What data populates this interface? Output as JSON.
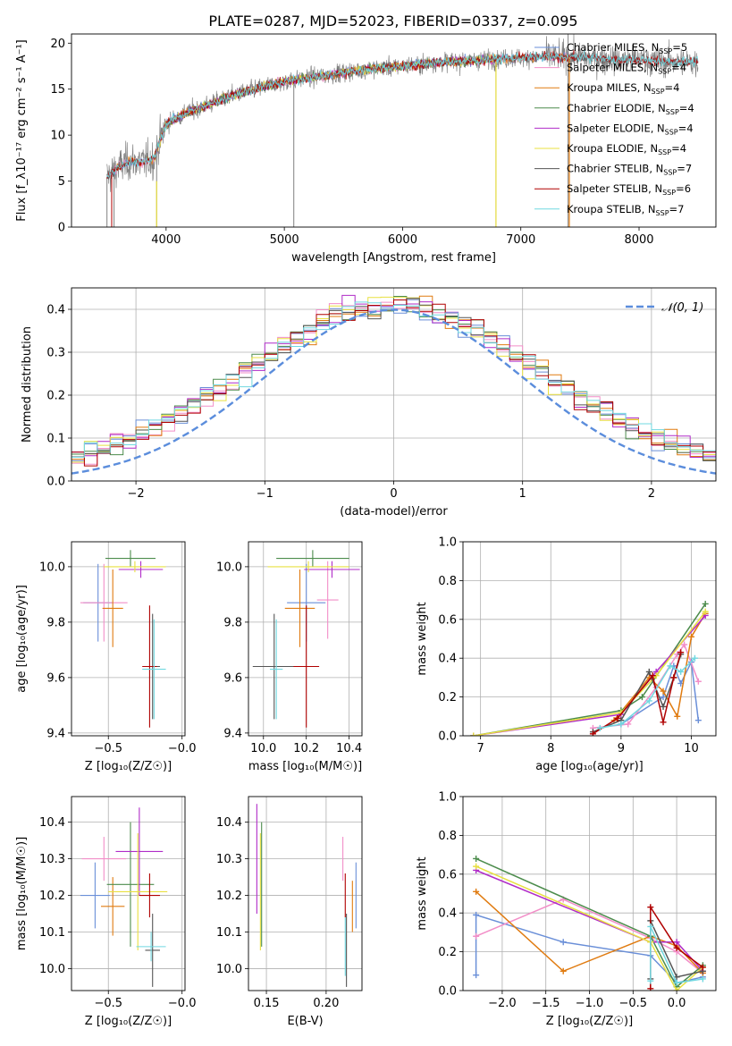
{
  "title": "PLATE=0287, MJD=52023, FIBERID=0337, z=0.095",
  "colors": {
    "chabrier_miles": "#6a8fd8",
    "salpeter_miles": "#f28ec8",
    "kroupa_miles": "#e07b10",
    "chabrier_elodie": "#4c8c4c",
    "salpeter_elodie": "#b02cc8",
    "kroupa_elodie": "#e8e040",
    "chabrier_stelib": "#555555",
    "salpeter_stelib": "#b00000",
    "kroupa_stelib": "#70d8e0",
    "data": "#808080",
    "normal": "#5b8ddc"
  },
  "chart_data": [
    {
      "id": "spectrum",
      "type": "line",
      "title": "PLATE=0287, MJD=52023, FIBERID=0337, z=0.095",
      "xlabel": "wavelength [Angstrom, rest frame]",
      "ylabel": "Flux [f_λ10⁻¹⁷ erg cm⁻² s⁻¹ A⁻¹]",
      "xlim": [
        3200,
        8650
      ],
      "ylim": [
        0,
        21
      ],
      "xticks": [
        4000,
        5000,
        6000,
        7000,
        8000
      ],
      "yticks": [
        0,
        5,
        10,
        15,
        20
      ],
      "grid": false,
      "legend_position": "top-right",
      "legend": [
        {
          "key": "chabrier_miles",
          "text": "Chabrier MILES, N",
          "sub": "SSP",
          "tail": "=5"
        },
        {
          "key": "salpeter_miles",
          "text": "Salpeter MILES, N",
          "sub": "SSP",
          "tail": "=4"
        },
        {
          "key": "kroupa_miles",
          "text": "Kroupa MILES, N",
          "sub": "SSP",
          "tail": "=4"
        },
        {
          "key": "chabrier_elodie",
          "text": "Chabrier ELODIE, N",
          "sub": "SSP",
          "tail": "=4"
        },
        {
          "key": "salpeter_elodie",
          "text": "Salpeter ELODIE, N",
          "sub": "SSP",
          "tail": "=4"
        },
        {
          "key": "kroupa_elodie",
          "text": "Kroupa ELODIE, N",
          "sub": "SSP",
          "tail": "=4"
        },
        {
          "key": "chabrier_stelib",
          "text": "Chabrier STELIB, N",
          "sub": "SSP",
          "tail": "=7"
        },
        {
          "key": "salpeter_stelib",
          "text": "Salpeter STELIB, N",
          "sub": "SSP",
          "tail": "=6"
        },
        {
          "key": "kroupa_stelib",
          "text": "Kroupa STELIB, N",
          "sub": "SSP",
          "tail": "=7"
        }
      ],
      "continuum": [
        [
          3500,
          5.5
        ],
        [
          3600,
          6.5
        ],
        [
          3700,
          7.2
        ],
        [
          3800,
          7.0
        ],
        [
          3900,
          7.5
        ],
        [
          3950,
          9.5
        ],
        [
          4000,
          11.2
        ],
        [
          4100,
          12.0
        ],
        [
          4200,
          12.6
        ],
        [
          4300,
          13.0
        ],
        [
          4400,
          13.5
        ],
        [
          4500,
          14.0
        ],
        [
          4600,
          14.5
        ],
        [
          4700,
          14.8
        ],
        [
          4800,
          15.2
        ],
        [
          4900,
          15.5
        ],
        [
          5000,
          15.8
        ],
        [
          5200,
          16.2
        ],
        [
          5400,
          16.6
        ],
        [
          5600,
          17.0
        ],
        [
          5800,
          17.3
        ],
        [
          6000,
          17.5
        ],
        [
          6200,
          17.8
        ],
        [
          6400,
          18.0
        ],
        [
          6600,
          18.1
        ],
        [
          6800,
          18.3
        ],
        [
          7000,
          18.4
        ],
        [
          7200,
          18.5
        ],
        [
          7400,
          18.5
        ],
        [
          7600,
          18.4
        ],
        [
          7800,
          18.2
        ],
        [
          8000,
          18.2
        ],
        [
          8200,
          18.0
        ],
        [
          8400,
          18.0
        ],
        [
          8500,
          17.9
        ]
      ],
      "model_ranges": {
        "miles": [
          3540,
          7410
        ],
        "elodie": [
          3900,
          6800
        ],
        "stelib": [
          3500,
          8500
        ]
      },
      "spikes": [
        [
          3500,
          0,
          5.5
        ],
        [
          3560,
          0,
          6.2
        ],
        [
          3920,
          0,
          9.0
        ],
        [
          5080,
          0,
          15.8
        ],
        [
          6790,
          0,
          18.2
        ],
        [
          7400,
          0,
          18.6
        ],
        [
          7400,
          18.5,
          21
        ]
      ]
    },
    {
      "id": "residuals",
      "type": "histogram",
      "xlabel": "(data-model)/error",
      "ylabel": "Normed distribution",
      "xlim": [
        -2.5,
        2.5
      ],
      "ylim": [
        0,
        0.45
      ],
      "xticks": [
        -2,
        -1,
        0,
        1,
        2
      ],
      "yticks": [
        0.0,
        0.1,
        0.2,
        0.3,
        0.4
      ],
      "grid": true,
      "legend_position": "top-right",
      "legend_label": "𝒩(0, 1)",
      "bin_width": 0.1
    },
    {
      "id": "age_vs_Z",
      "type": "scatter",
      "xlabel": "Z [log₁₀(Z/Z☉)]",
      "ylabel": "age  [log₁₀(age/yr)]",
      "xlim": [
        -0.75,
        0.02
      ],
      "ylim": [
        9.39,
        10.09
      ],
      "xticks": [
        -0.5,
        -0.0
      ],
      "xtick_labels": [
        "−0.5",
        "−0.0"
      ],
      "yticks": [
        9.4,
        9.6,
        9.8,
        10.0
      ],
      "grid": true,
      "points": [
        {
          "key": "chabrier_miles",
          "x": -0.57,
          "xerr": 0.1,
          "y": 9.87,
          "yerr": 0.14
        },
        {
          "key": "salpeter_miles",
          "x": -0.53,
          "xerr": 0.16,
          "y": 9.87,
          "yerr": 0.14
        },
        {
          "key": "kroupa_miles",
          "x": -0.47,
          "xerr": 0.07,
          "y": 9.85,
          "yerr": 0.14
        },
        {
          "key": "chabrier_elodie",
          "x": -0.35,
          "xerr": 0.17,
          "y": 10.03,
          "yerr": 0.03
        },
        {
          "key": "salpeter_elodie",
          "x": -0.28,
          "xerr": 0.15,
          "y": 9.99,
          "yerr": 0.03
        },
        {
          "key": "kroupa_elodie",
          "x": -0.32,
          "xerr": 0.21,
          "y": 10.0,
          "yerr": 0.02
        },
        {
          "key": "chabrier_stelib",
          "x": -0.2,
          "xerr": 0.05,
          "y": 9.64,
          "yerr": 0.19
        },
        {
          "key": "salpeter_stelib",
          "x": -0.22,
          "xerr": 0.05,
          "y": 9.64,
          "yerr": 0.22
        },
        {
          "key": "kroupa_stelib",
          "x": -0.19,
          "xerr": 0.08,
          "y": 9.63,
          "yerr": 0.18
        }
      ]
    },
    {
      "id": "age_vs_mass",
      "type": "scatter",
      "xlabel": "mass [log₁₀(M/M☉)]",
      "ylabel": "",
      "xlim": [
        9.93,
        10.46
      ],
      "ylim": [
        9.39,
        10.09
      ],
      "xticks": [
        10.0,
        10.2,
        10.4
      ],
      "yticks": [
        9.4,
        9.6,
        9.8,
        10.0
      ],
      "grid": true,
      "points": [
        {
          "key": "chabrier_miles",
          "x": 10.2,
          "xerr": 0.09,
          "y": 9.87,
          "yerr": 0.14
        },
        {
          "key": "salpeter_miles",
          "x": 10.3,
          "xerr": 0.05,
          "y": 9.88,
          "yerr": 0.14
        },
        {
          "key": "kroupa_miles",
          "x": 10.17,
          "xerr": 0.07,
          "y": 9.85,
          "yerr": 0.14
        },
        {
          "key": "chabrier_elodie",
          "x": 10.23,
          "xerr": 0.17,
          "y": 10.03,
          "yerr": 0.03
        },
        {
          "key": "salpeter_elodie",
          "x": 10.32,
          "xerr": 0.13,
          "y": 9.99,
          "yerr": 0.03
        },
        {
          "key": "kroupa_elodie",
          "x": 10.21,
          "xerr": 0.19,
          "y": 10.0,
          "yerr": 0.02
        },
        {
          "key": "chabrier_stelib",
          "x": 10.05,
          "xerr": 0.1,
          "y": 9.64,
          "yerr": 0.19
        },
        {
          "key": "salpeter_stelib",
          "x": 10.2,
          "xerr": 0.06,
          "y": 9.64,
          "yerr": 0.22
        },
        {
          "key": "kroupa_stelib",
          "x": 10.06,
          "xerr": 0.03,
          "y": 9.63,
          "yerr": 0.18
        }
      ]
    },
    {
      "id": "massweight_vs_age",
      "type": "line",
      "xlabel": "age  [log₁₀(age/yr)]",
      "ylabel": "mass weight",
      "xlim": [
        6.75,
        10.35
      ],
      "ylim": [
        0,
        1
      ],
      "xticks": [
        7,
        8,
        9,
        10
      ],
      "yticks": [
        0.0,
        0.2,
        0.4,
        0.6,
        0.8,
        1.0
      ],
      "grid": true,
      "series": [
        {
          "key": "chabrier_miles",
          "x": [
            9.0,
            9.6,
            9.75,
            9.85,
            10.0,
            10.1
          ],
          "y": [
            0.06,
            0.2,
            0.36,
            0.27,
            0.38,
            0.08
          ]
        },
        {
          "key": "salpeter_miles",
          "x": [
            8.6,
            9.1,
            9.5,
            9.8,
            9.9,
            10.1
          ],
          "y": [
            0.04,
            0.06,
            0.25,
            0.42,
            0.47,
            0.28
          ]
        },
        {
          "key": "kroupa_miles",
          "x": [
            8.9,
            9.4,
            9.6,
            9.8,
            10.0,
            10.2
          ],
          "y": [
            0.08,
            0.3,
            0.23,
            0.1,
            0.51,
            0.63
          ]
        },
        {
          "key": "chabrier_elodie",
          "x": [
            6.9,
            9.0,
            9.3,
            10.2
          ],
          "y": [
            0.0,
            0.13,
            0.2,
            0.68
          ]
        },
        {
          "key": "salpeter_elodie",
          "x": [
            6.9,
            9.0,
            9.5,
            10.2
          ],
          "y": [
            0.0,
            0.11,
            0.33,
            0.62
          ]
        },
        {
          "key": "kroupa_elodie",
          "x": [
            6.9,
            9.0,
            9.5,
            10.2
          ],
          "y": [
            0.0,
            0.12,
            0.31,
            0.64
          ]
        },
        {
          "key": "chabrier_stelib",
          "x": [
            8.6,
            9.0,
            9.4,
            9.6,
            9.75,
            9.85
          ],
          "y": [
            0.02,
            0.08,
            0.33,
            0.15,
            0.3,
            0.42
          ]
        },
        {
          "key": "salpeter_stelib",
          "x": [
            8.6,
            8.95,
            9.45,
            9.6,
            9.75,
            9.85
          ],
          "y": [
            0.01,
            0.09,
            0.31,
            0.07,
            0.3,
            0.43
          ]
        },
        {
          "key": "kroupa_stelib",
          "x": [
            8.7,
            9.0,
            9.4,
            9.7,
            9.85,
            10.05
          ],
          "y": [
            0.04,
            0.06,
            0.18,
            0.36,
            0.33,
            0.4
          ]
        }
      ]
    },
    {
      "id": "mass_vs_Z",
      "type": "scatter",
      "xlabel": "Z [log₁₀(Z/Z☉)]",
      "ylabel": "mass [log₁₀(M/M☉)]",
      "xlim": [
        -0.75,
        0.02
      ],
      "ylim": [
        9.94,
        10.47
      ],
      "xticks": [
        -0.5,
        -0.0
      ],
      "xtick_labels": [
        "−0.5",
        "−0.0"
      ],
      "yticks": [
        10.0,
        10.1,
        10.2,
        10.3,
        10.4
      ],
      "grid": true,
      "points": [
        {
          "key": "chabrier_miles",
          "x": -0.59,
          "xerr": 0.1,
          "y": 10.2,
          "yerr": 0.09
        },
        {
          "key": "salpeter_miles",
          "x": -0.53,
          "xerr": 0.15,
          "y": 10.3,
          "yerr": 0.06
        },
        {
          "key": "kroupa_miles",
          "x": -0.47,
          "xerr": 0.08,
          "y": 10.17,
          "yerr": 0.08
        },
        {
          "key": "chabrier_elodie",
          "x": -0.35,
          "xerr": 0.16,
          "y": 10.23,
          "yerr": 0.17
        },
        {
          "key": "salpeter_elodie",
          "x": -0.29,
          "xerr": 0.16,
          "y": 10.32,
          "yerr": 0.12
        },
        {
          "key": "kroupa_elodie",
          "x": -0.3,
          "xerr": 0.2,
          "y": 10.21,
          "yerr": 0.16
        },
        {
          "key": "chabrier_stelib",
          "x": -0.2,
          "xerr": 0.05,
          "y": 10.05,
          "yerr": 0.1
        },
        {
          "key": "salpeter_stelib",
          "x": -0.22,
          "xerr": 0.07,
          "y": 10.2,
          "yerr": 0.06
        },
        {
          "key": "kroupa_stelib",
          "x": -0.21,
          "xerr": 0.1,
          "y": 10.06,
          "yerr": 0.04
        }
      ]
    },
    {
      "id": "mass_vs_ebv",
      "type": "scatter",
      "xlabel": "E(B-V)",
      "ylabel": "",
      "xlim": [
        0.135,
        0.23
      ],
      "ylim": [
        9.94,
        10.47
      ],
      "xticks": [
        0.15,
        0.2
      ],
      "yticks": [
        10.0,
        10.1,
        10.2,
        10.3,
        10.4
      ],
      "grid": true,
      "points": [
        {
          "key": "chabrier_miles",
          "x": 0.225,
          "xerr": 0,
          "y": 10.2,
          "yerr": 0.09
        },
        {
          "key": "salpeter_miles",
          "x": 0.214,
          "xerr": 0,
          "y": 10.3,
          "yerr": 0.06
        },
        {
          "key": "kroupa_miles",
          "x": 0.222,
          "xerr": 0,
          "y": 10.17,
          "yerr": 0.07
        },
        {
          "key": "chabrier_elodie",
          "x": 0.146,
          "xerr": 0,
          "y": 10.23,
          "yerr": 0.17
        },
        {
          "key": "salpeter_elodie",
          "x": 0.142,
          "xerr": 0,
          "y": 10.3,
          "yerr": 0.15
        },
        {
          "key": "kroupa_elodie",
          "x": 0.145,
          "xerr": 0,
          "y": 10.21,
          "yerr": 0.16
        },
        {
          "key": "chabrier_stelib",
          "x": 0.217,
          "xerr": 0,
          "y": 10.05,
          "yerr": 0.1
        },
        {
          "key": "salpeter_stelib",
          "x": 0.216,
          "xerr": 0,
          "y": 10.2,
          "yerr": 0.06
        },
        {
          "key": "kroupa_stelib",
          "x": 0.216,
          "xerr": 0,
          "y": 10.06,
          "yerr": 0.08
        }
      ]
    },
    {
      "id": "massweight_vs_Z",
      "type": "line",
      "xlabel": "Z [log₁₀(Z/Z☉)]",
      "ylabel": "mass weight",
      "xlim": [
        -2.45,
        0.45
      ],
      "ylim": [
        0,
        1
      ],
      "xticks": [
        -2.0,
        -1.5,
        -1.0,
        -0.5,
        0.0
      ],
      "xtick_labels": [
        "−2.0",
        "−1.5",
        "−1.0",
        "−0.5",
        "0.0"
      ],
      "yticks": [
        0.0,
        0.2,
        0.4,
        0.6,
        0.8,
        1.0
      ],
      "grid": true,
      "series": [
        {
          "key": "chabrier_miles",
          "x": [
            -2.3,
            -2.3,
            -1.3,
            -0.3,
            0.0,
            0.3
          ],
          "y": [
            0.08,
            0.39,
            0.25,
            0.18,
            0.04,
            0.07
          ]
        },
        {
          "key": "salpeter_miles",
          "x": [
            -2.3,
            -1.3,
            -0.3,
            0.0,
            0.3
          ],
          "y": [
            0.28,
            0.47,
            0.27,
            0.2,
            0.09
          ]
        },
        {
          "key": "kroupa_miles",
          "x": [
            -2.3,
            -1.3,
            -0.3,
            0.0,
            0.3
          ],
          "y": [
            0.51,
            0.1,
            0.28,
            0.23,
            0.09
          ]
        },
        {
          "key": "chabrier_elodie",
          "x": [
            -2.3,
            -0.3,
            0.0,
            0.3
          ],
          "y": [
            0.68,
            0.28,
            0.02,
            0.13
          ]
        },
        {
          "key": "salpeter_elodie",
          "x": [
            -2.3,
            -0.3,
            0.0,
            0.3
          ],
          "y": [
            0.62,
            0.25,
            0.25,
            0.1
          ]
        },
        {
          "key": "kroupa_elodie",
          "x": [
            -2.3,
            -0.3,
            0.0,
            0.3
          ],
          "y": [
            0.64,
            0.25,
            0.0,
            0.12
          ]
        },
        {
          "key": "chabrier_stelib",
          "x": [
            -0.3,
            -0.3,
            0.0,
            0.3
          ],
          "y": [
            0.06,
            0.36,
            0.07,
            0.1
          ]
        },
        {
          "key": "salpeter_stelib",
          "x": [
            -0.3,
            -0.3,
            0.0,
            0.3
          ],
          "y": [
            0.01,
            0.43,
            0.22,
            0.12
          ]
        },
        {
          "key": "kroupa_stelib",
          "x": [
            -0.3,
            -0.3,
            0.0,
            0.3
          ],
          "y": [
            0.05,
            0.33,
            0.04,
            0.06
          ]
        }
      ]
    }
  ]
}
